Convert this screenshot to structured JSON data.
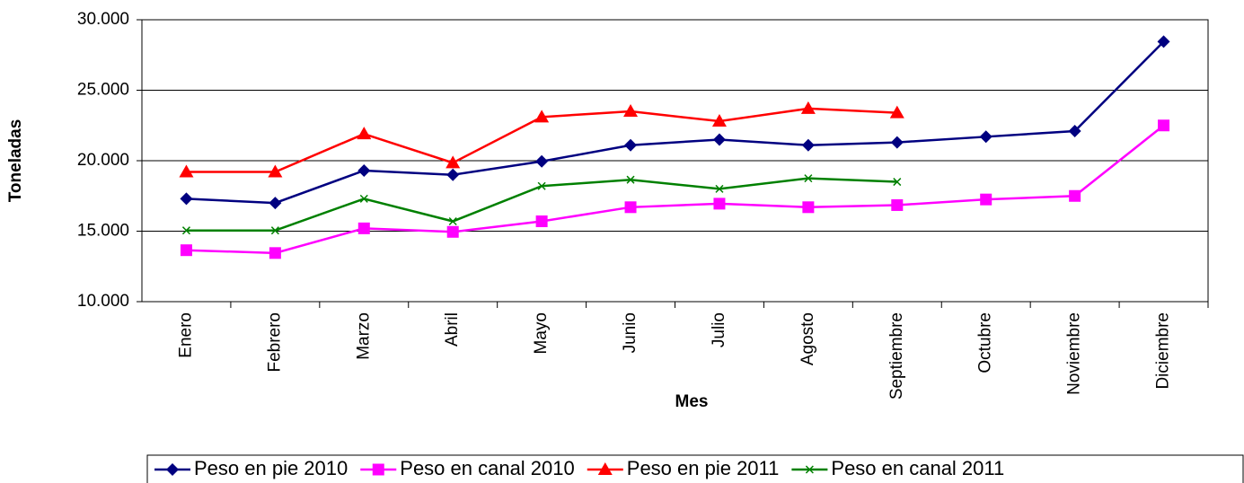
{
  "chart_data": {
    "type": "line",
    "ylabel": "Toneladas",
    "xlabel": "Mes",
    "categories": [
      "Enero",
      "Febrero",
      "Marzo",
      "Abril",
      "Mayo",
      "Junio",
      "Julio",
      "Agosto",
      "Septiembre",
      "Octubre",
      "Noviembre",
      "Diciembre"
    ],
    "series": [
      {
        "name": "Peso en pie 2010",
        "color": "#000080",
        "marker": "diamond",
        "values": [
          17300,
          17000,
          19300,
          19000,
          19950,
          21100,
          21500,
          21100,
          21300,
          21700,
          22100,
          28450
        ]
      },
      {
        "name": "Peso en canal 2010",
        "color": "#ff00ff",
        "marker": "square",
        "values": [
          13650,
          13450,
          15200,
          14950,
          15700,
          16700,
          16950,
          16700,
          16850,
          17250,
          17500,
          22500
        ]
      },
      {
        "name": "Peso en pie 2011",
        "color": "#ff0000",
        "marker": "triangle",
        "values": [
          19200,
          19200,
          21900,
          19850,
          23100,
          23500,
          22800,
          23700,
          23400,
          null,
          null,
          null
        ]
      },
      {
        "name": "Peso en canal 2011",
        "color": "#008000",
        "marker": "x",
        "values": [
          15050,
          15050,
          17300,
          15700,
          18200,
          18650,
          18000,
          18750,
          18500,
          null,
          null,
          null
        ]
      }
    ],
    "ylim": [
      10000,
      30000
    ],
    "yticks": [
      {
        "value": 10000,
        "label": "10.000"
      },
      {
        "value": 15000,
        "label": "15.000"
      },
      {
        "value": 20000,
        "label": "20.000"
      },
      {
        "value": 25000,
        "label": "25.000"
      },
      {
        "value": 30000,
        "label": "30.000"
      }
    ],
    "grid": true,
    "legend": "bottom"
  }
}
